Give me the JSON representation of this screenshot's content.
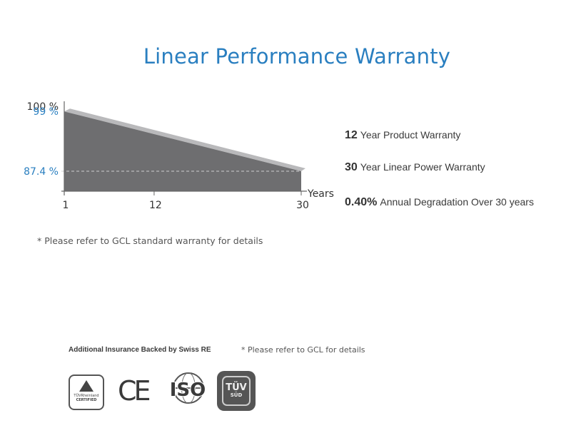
{
  "title": "Linear Performance Warranty",
  "chart_data": {
    "type": "area",
    "x": [
      1,
      30
    ],
    "series": [
      {
        "values": [
          99,
          87.4
        ]
      }
    ],
    "baseline": 0,
    "y_tick_labels": [
      {
        "value": 100,
        "label": "100 %"
      },
      {
        "value": 99,
        "label": "99 %",
        "color": "#2a7fc0"
      },
      {
        "value": 87.4,
        "label": "87.4 %",
        "color": "#2a7fc0"
      }
    ],
    "x_tick_labels": [
      {
        "value": 1,
        "label": "1"
      },
      {
        "value": 12,
        "label": "12"
      },
      {
        "value": 30,
        "label": "30"
      }
    ],
    "xlabel": "Years",
    "ylabel": "",
    "xlim": [
      1,
      30
    ],
    "reference_line": 87.4,
    "fill_color": "#6e6e70",
    "top_edge_color": "#b9b9bb"
  },
  "specs": [
    {
      "number": "12",
      "text": "Year Product Warranty"
    },
    {
      "number": "30",
      "text": "Year Linear Power Warranty"
    },
    {
      "number": "0.40%",
      "text": "Annual Degradation Over 30 years"
    }
  ],
  "note_main": "* Please refer to GCL standard warranty for details",
  "insurance_label": "Additional Insurance Backed by Swiss RE",
  "note_bottom": "* Please refer to GCL for details",
  "logos": {
    "tuv_rheinland": {
      "line1": "TÜVRheinland",
      "line2": "CERTIFIED"
    },
    "ce": "CE",
    "iso": "ISO",
    "tuv_sud": {
      "line1": "TÜV",
      "line2": "SÜD"
    }
  }
}
